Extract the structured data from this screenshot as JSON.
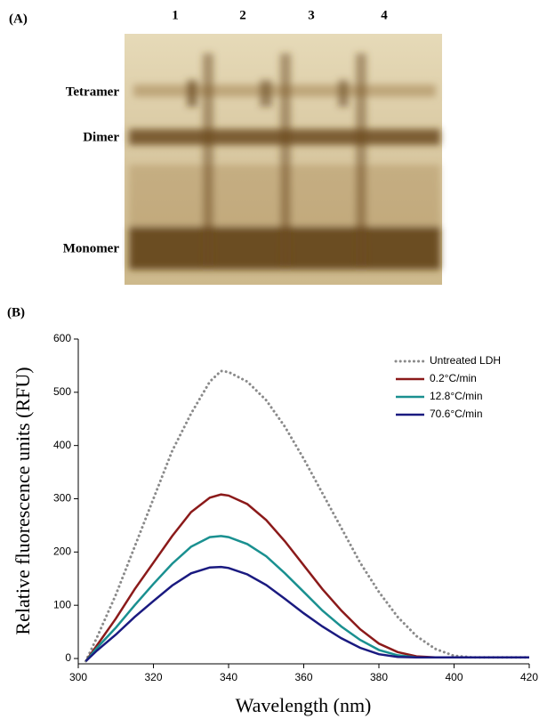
{
  "panel_a": {
    "label": "(A)",
    "lanes": [
      "1",
      "2",
      "3",
      "4"
    ],
    "bands": [
      "Tetramer",
      "Dimer",
      "Monomer"
    ]
  },
  "panel_b_label": "(B)",
  "chart_data": {
    "type": "line",
    "xlabel": "Wavelength (nm)",
    "ylabel": "Relative fluorescence units (RFU)",
    "x": [
      302,
      305,
      310,
      315,
      320,
      325,
      330,
      335,
      338,
      340,
      345,
      350,
      355,
      360,
      365,
      370,
      375,
      380,
      385,
      390,
      395,
      400,
      405,
      410,
      415,
      420
    ],
    "series": [
      {
        "name": "Untreated LDH",
        "color": "#8a8a8a",
        "style": "dotted",
        "values": [
          -5,
          40,
          120,
          210,
          300,
          390,
          460,
          520,
          540,
          538,
          520,
          485,
          435,
          375,
          310,
          245,
          180,
          125,
          78,
          42,
          18,
          5,
          2,
          2,
          2,
          2
        ]
      },
      {
        "name": "0.2°C/min",
        "color": "#8b1a1a",
        "style": "solid",
        "values": [
          -5,
          25,
          75,
          130,
          180,
          230,
          275,
          302,
          308,
          306,
          290,
          260,
          220,
          175,
          130,
          90,
          55,
          28,
          12,
          4,
          2,
          2,
          2,
          2,
          2,
          2
        ]
      },
      {
        "name": "12.8°C/min",
        "color": "#1a9090",
        "style": "solid",
        "values": [
          -5,
          20,
          58,
          100,
          140,
          178,
          210,
          228,
          230,
          228,
          215,
          192,
          160,
          125,
          90,
          60,
          35,
          16,
          6,
          2,
          2,
          2,
          2,
          2,
          2,
          2
        ]
      },
      {
        "name": "70.6°C/min",
        "color": "#1a1a80",
        "style": "solid",
        "values": [
          -5,
          15,
          45,
          78,
          108,
          137,
          160,
          171,
          172,
          170,
          158,
          138,
          112,
          85,
          60,
          38,
          20,
          8,
          3,
          2,
          2,
          2,
          2,
          2,
          2,
          2
        ]
      }
    ],
    "xlim": [
      300,
      420
    ],
    "xticks": [
      300,
      320,
      340,
      360,
      380,
      400,
      420
    ],
    "ylim": [
      -10,
      600
    ],
    "yticks": [
      0,
      100,
      200,
      300,
      400,
      500,
      600
    ],
    "grid": false,
    "legend": "top-right"
  }
}
